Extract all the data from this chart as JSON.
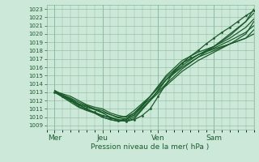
{
  "xlabel": "Pression niveau de la mer( hPa )",
  "ylim": [
    1008.5,
    1023.5
  ],
  "yticks": [
    1009,
    1010,
    1011,
    1012,
    1013,
    1014,
    1015,
    1016,
    1017,
    1018,
    1019,
    1020,
    1021,
    1022,
    1023
  ],
  "xtick_labels": [
    "Mer",
    "Jeu",
    "Ven",
    "Sam"
  ],
  "xtick_positions": [
    0.5,
    3.5,
    7.0,
    10.5
  ],
  "xlim": [
    0,
    13.0
  ],
  "bg_color": "#cce8d8",
  "grid_color": "#88bb99",
  "line_color": "#1a5c2a",
  "line_width": 0.9,
  "lines": [
    [
      0.5,
      1013.2,
      1.5,
      1012.1,
      2.0,
      1011.6,
      2.5,
      1011.2,
      3.0,
      1010.9,
      3.5,
      1010.5,
      4.0,
      1010.0,
      4.5,
      1009.6,
      5.0,
      1009.8,
      5.5,
      1010.5,
      6.5,
      1012.2,
      7.5,
      1014.0,
      8.5,
      1015.8,
      9.5,
      1017.2,
      10.5,
      1018.5,
      11.5,
      1020.0,
      12.5,
      1021.5,
      13.0,
      1023.0
    ],
    [
      0.5,
      1013.0,
      1.5,
      1012.0,
      2.0,
      1011.5,
      2.5,
      1011.0,
      3.0,
      1010.5,
      3.5,
      1010.0,
      4.0,
      1009.7,
      4.5,
      1009.5,
      5.0,
      1009.7,
      5.5,
      1010.3,
      6.5,
      1012.0,
      7.5,
      1013.8,
      8.5,
      1015.5,
      9.5,
      1016.8,
      10.5,
      1017.8,
      11.5,
      1018.8,
      12.5,
      1020.0,
      13.0,
      1021.5
    ],
    [
      0.5,
      1013.0,
      1.5,
      1012.3,
      2.0,
      1011.8,
      2.5,
      1011.4,
      3.0,
      1011.0,
      3.5,
      1010.6,
      4.0,
      1010.3,
      4.5,
      1010.0,
      5.0,
      1010.1,
      5.5,
      1010.8,
      6.5,
      1012.5,
      7.5,
      1014.5,
      8.5,
      1016.0,
      9.5,
      1017.2,
      10.5,
      1018.0,
      11.5,
      1018.8,
      12.5,
      1019.5,
      13.0,
      1020.0
    ],
    [
      0.5,
      1013.1,
      1.5,
      1012.5,
      2.0,
      1012.0,
      2.5,
      1011.5,
      3.0,
      1011.2,
      3.5,
      1011.0,
      4.0,
      1010.5,
      4.5,
      1010.2,
      5.0,
      1010.0,
      5.5,
      1010.5,
      6.5,
      1012.5,
      7.5,
      1014.8,
      8.5,
      1016.5,
      9.5,
      1017.5,
      10.5,
      1018.2,
      11.5,
      1018.8,
      12.5,
      1019.5,
      13.0,
      1020.5
    ],
    [
      0.5,
      1013.2,
      1.5,
      1012.2,
      2.0,
      1011.6,
      2.5,
      1011.3,
      3.0,
      1011.0,
      3.5,
      1010.8,
      4.0,
      1010.3,
      4.5,
      1009.9,
      5.0,
      1009.8,
      5.5,
      1010.2,
      6.5,
      1012.5,
      7.5,
      1015.0,
      8.5,
      1016.8,
      9.5,
      1017.8,
      10.5,
      1018.5,
      11.5,
      1019.5,
      12.5,
      1020.8,
      13.0,
      1021.8
    ],
    [
      0.5,
      1013.0,
      1.5,
      1012.0,
      2.0,
      1011.3,
      2.5,
      1010.9,
      3.0,
      1010.5,
      3.5,
      1010.0,
      4.0,
      1009.7,
      4.5,
      1009.5,
      5.0,
      1009.6,
      5.5,
      1010.0,
      6.5,
      1012.0,
      7.5,
      1014.5,
      8.5,
      1016.2,
      9.5,
      1017.5,
      10.5,
      1018.5,
      11.5,
      1019.8,
      12.5,
      1021.5,
      13.0,
      1022.5
    ],
    [
      0.5,
      1013.0,
      1.5,
      1011.8,
      2.0,
      1011.2,
      2.5,
      1010.8,
      3.0,
      1010.5,
      3.5,
      1010.2,
      4.0,
      1010.0,
      4.5,
      1009.7,
      5.0,
      1009.5,
      5.5,
      1009.8,
      6.5,
      1012.0,
      7.5,
      1014.5,
      8.5,
      1016.5,
      9.5,
      1017.5,
      10.5,
      1018.3,
      11.5,
      1019.2,
      12.5,
      1020.2,
      13.0,
      1021.0
    ]
  ],
  "dot_line": [
    0.5,
    1013.0,
    1.0,
    1012.5,
    1.5,
    1012.0,
    2.0,
    1011.5,
    2.5,
    1011.0,
    3.0,
    1010.6,
    3.5,
    1010.2,
    4.0,
    1009.9,
    4.5,
    1009.6,
    5.0,
    1009.5,
    5.5,
    1009.7,
    6.0,
    1010.2,
    6.5,
    1011.0,
    7.0,
    1012.5,
    7.5,
    1014.0,
    8.0,
    1015.5,
    8.5,
    1016.5,
    9.0,
    1017.3,
    9.5,
    1018.0,
    10.0,
    1018.8,
    10.5,
    1019.5,
    11.0,
    1020.2,
    11.5,
    1020.8,
    12.0,
    1021.5,
    12.5,
    1022.2,
    13.0,
    1022.8
  ]
}
